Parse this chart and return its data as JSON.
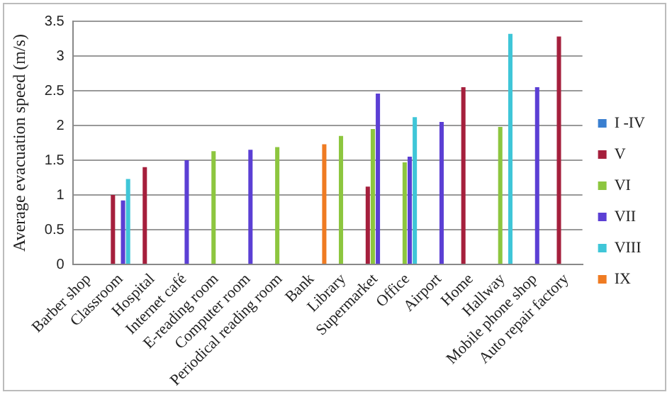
{
  "chart_data": {
    "type": "bar",
    "ylabel": "Average evacuation speed (m/s)",
    "categories": [
      "Barber shop",
      "Classroom",
      "Hospital",
      "Internet café",
      "E-reading room",
      "Computer room",
      "Periodical reading room",
      "Bank",
      "Library",
      "Supermarket",
      "Office",
      "Airport",
      "Home",
      "Hallway",
      "Mobile phone shop",
      "Auto repair factory"
    ],
    "series": [
      {
        "name": "I -IV",
        "color": "#3a7fd0",
        "values": [
          null,
          null,
          null,
          null,
          null,
          null,
          null,
          null,
          null,
          null,
          null,
          null,
          null,
          null,
          null,
          null
        ]
      },
      {
        "name": "V",
        "color": "#a51f3c",
        "values": [
          null,
          1.0,
          1.4,
          null,
          null,
          null,
          null,
          null,
          null,
          1.12,
          null,
          null,
          2.55,
          null,
          null,
          3.28
        ]
      },
      {
        "name": "VI",
        "color": "#8dc63f",
        "values": [
          null,
          null,
          null,
          null,
          1.63,
          null,
          1.69,
          null,
          1.85,
          1.95,
          1.47,
          null,
          null,
          1.98,
          null,
          null
        ]
      },
      {
        "name": "VII",
        "color": "#5b3fd4",
        "values": [
          null,
          0.92,
          null,
          1.5,
          null,
          1.65,
          null,
          null,
          null,
          2.46,
          1.55,
          2.05,
          null,
          null,
          2.55,
          null
        ]
      },
      {
        "name": "VIII",
        "color": "#3fc6d8",
        "values": [
          null,
          1.23,
          null,
          null,
          null,
          null,
          null,
          null,
          null,
          null,
          2.12,
          null,
          null,
          3.32,
          null,
          null
        ]
      },
      {
        "name": "IX",
        "color": "#ef7b22",
        "values": [
          null,
          null,
          null,
          null,
          null,
          null,
          null,
          1.73,
          null,
          null,
          null,
          null,
          null,
          null,
          null,
          null
        ]
      }
    ],
    "ylim": [
      0,
      3.5
    ],
    "yticks": [
      0,
      0.5,
      1,
      1.5,
      2,
      2.5,
      3,
      3.5
    ],
    "grid": "y",
    "legend": "right"
  }
}
